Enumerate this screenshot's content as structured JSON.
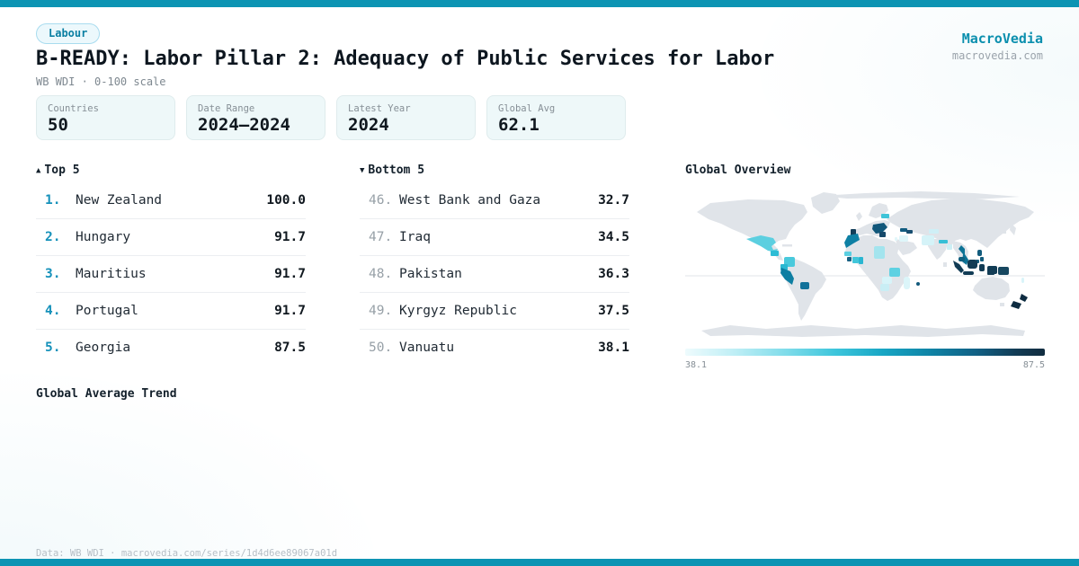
{
  "meta": {
    "brand": "MacroVedia",
    "brand_url": "macrovedia.com"
  },
  "header": {
    "category_badge": "Labour",
    "title": "B-READY: Labor Pillar 2: Adequacy of Public Services for Labor",
    "subtitle": "WB WDI · 0-100 scale"
  },
  "stats": [
    {
      "label": "Countries",
      "value": "50"
    },
    {
      "label": "Date Range",
      "value": "2024—2024"
    },
    {
      "label": "Latest Year",
      "value": "2024"
    },
    {
      "label": "Global Avg",
      "value": "62.1"
    }
  ],
  "top5": {
    "icon": "▲",
    "title": "Top 5",
    "rows": [
      {
        "rank": "1.",
        "country": "New Zealand",
        "value": "100.0"
      },
      {
        "rank": "2.",
        "country": "Hungary",
        "value": "91.7"
      },
      {
        "rank": "3.",
        "country": "Mauritius",
        "value": "91.7"
      },
      {
        "rank": "4.",
        "country": "Portugal",
        "value": "91.7"
      },
      {
        "rank": "5.",
        "country": "Georgia",
        "value": "87.5"
      }
    ]
  },
  "bottom5": {
    "icon": "▼",
    "title": "Bottom 5",
    "rows": [
      {
        "rank": "46.",
        "country": "West Bank and Gaza",
        "value": "32.7"
      },
      {
        "rank": "47.",
        "country": "Iraq",
        "value": "34.5"
      },
      {
        "rank": "48.",
        "country": "Pakistan",
        "value": "36.3"
      },
      {
        "rank": "49.",
        "country": "Kyrgyz Republic",
        "value": "37.5"
      },
      {
        "rank": "50.",
        "country": "Vanuatu",
        "value": "38.1"
      }
    ]
  },
  "map": {
    "title": "Global Overview",
    "legend_min": "38.1",
    "legend_max": "87.5",
    "land_color": "#e0e4e9",
    "regions": [
      {
        "id": "mexico",
        "color": "#5ccfe0",
        "pieces": [
          "M68,56 L84,52 L98,55 L101,60 L96,64 L98,68 L103,67 L101,71 L92,69 L84,64 L76,60 Z"
        ]
      },
      {
        "id": "guatemala",
        "color": "#2dbcd5",
        "pieces": [
          [
            95,
            69,
            9,
            6,
            1
          ]
        ]
      },
      {
        "id": "colombia",
        "color": "#49c9dc",
        "pieces": [
          [
            110,
            76,
            12,
            11,
            2
          ]
        ]
      },
      {
        "id": "ecuador",
        "color": "#2bb8d2",
        "pieces": [
          [
            106,
            84,
            8,
            7,
            1
          ]
        ]
      },
      {
        "id": "peru",
        "color": "#0d7ea2",
        "pieces": [
          "M107,88 L117,92 L121,100 L119,107 L111,101 L106,94 Z"
        ]
      },
      {
        "id": "paraguay",
        "color": "#10719a",
        "pieces": [
          [
            128,
            104,
            10,
            8,
            2
          ]
        ]
      },
      {
        "id": "portugal",
        "color": "#123e59",
        "pieces": [
          [
            184,
            45,
            6,
            11,
            1
          ]
        ]
      },
      {
        "id": "morocco",
        "color": "#0e80a4",
        "pieces": [
          "M181,52 L192,50 L194,57 L187,61 L179,66 L177,60 Z"
        ]
      },
      {
        "id": "senegal",
        "color": "#5bcfe1",
        "pieces": [
          [
            177,
            70,
            8,
            5,
            1
          ]
        ]
      },
      {
        "id": "sierra-leone",
        "color": "#186083",
        "pieces": [
          [
            180,
            76,
            5,
            5,
            1
          ]
        ]
      },
      {
        "id": "cote-divoire",
        "color": "#42c6da",
        "pieces": [
          [
            186,
            76,
            7,
            7,
            1
          ]
        ]
      },
      {
        "id": "ghana",
        "color": "#2ab6d1",
        "pieces": [
          [
            193,
            76,
            5,
            8,
            1
          ]
        ]
      },
      {
        "id": "chad",
        "color": "#a3e4ee",
        "pieces": [
          [
            210,
            64,
            12,
            14,
            2
          ]
        ]
      },
      {
        "id": "tanzania",
        "color": "#5ed1e2",
        "pieces": [
          [
            227,
            88,
            12,
            10,
            2
          ]
        ]
      },
      {
        "id": "zambia",
        "color": "#d7f4f9",
        "pieces": [
          [
            219,
            98,
            11,
            8,
            2
          ]
        ]
      },
      {
        "id": "botswana",
        "color": "#c9eef5",
        "pieces": [
          [
            217,
            106,
            10,
            8,
            2
          ]
        ]
      },
      {
        "id": "madagascar",
        "color": "#dbf5f9",
        "pieces": [
          [
            243,
            98,
            7,
            14,
            3
          ]
        ]
      },
      {
        "id": "estonia",
        "color": "#3fc4d8",
        "pieces": [
          [
            218,
            28,
            9,
            5,
            1
          ]
        ]
      },
      {
        "id": "balkans-hungary",
        "color": "#11577a",
        "pieces": [
          "M209,40 L221,38 L225,43 L219,49 L212,50 L208,45 Z"
        ]
      },
      {
        "id": "greece",
        "color": "#16496a",
        "pieces": [
          [
            216,
            48,
            7,
            6,
            1
          ]
        ]
      },
      {
        "id": "georgia",
        "color": "#115c80",
        "pieces": [
          [
            239,
            44,
            8,
            4,
            1
          ]
        ]
      },
      {
        "id": "azerbaijan",
        "color": "#174e70",
        "pieces": [
          [
            246,
            46,
            7,
            4,
            1
          ]
        ]
      },
      {
        "id": "west-bank",
        "color": "#e2f7fa",
        "pieces": [
          [
            233,
            54,
            3,
            4,
            1
          ]
        ]
      },
      {
        "id": "iraq",
        "color": "#def6fa",
        "pieces": [
          [
            238,
            52,
            10,
            7,
            2
          ]
        ]
      },
      {
        "id": "pakistan",
        "color": "#d5f3f8",
        "pieces": [
          [
            263,
            52,
            14,
            11,
            2
          ]
        ]
      },
      {
        "id": "kyrgyz",
        "color": "#cfeff6",
        "pieces": [
          [
            271,
            45,
            11,
            5,
            1
          ]
        ]
      },
      {
        "id": "nepal",
        "color": "#37bfd6",
        "pieces": [
          [
            282,
            57,
            10,
            4,
            1
          ]
        ]
      },
      {
        "id": "bangladesh",
        "color": "#cdeff5",
        "pieces": [
          [
            291,
            62,
            6,
            6,
            1
          ]
        ]
      },
      {
        "id": "vietnam",
        "color": "#0d7396",
        "pieces": [
          "M307,63 L311,67 L311,73 L315,79 L313,85 L308,81 L309,73 L304,67 Z"
        ]
      },
      {
        "id": "cambodia",
        "color": "#11607f",
        "pieces": [
          [
            304,
            76,
            7,
            5,
            2
          ]
        ]
      },
      {
        "id": "philippines",
        "color": "#135c7d",
        "pieces": [
          [
            325,
            68,
            5,
            7,
            2
          ],
          [
            328,
            76,
            4,
            5,
            1
          ],
          [
            323,
            79,
            4,
            4,
            1
          ]
        ]
      },
      {
        "id": "indonesia",
        "color": "#123c55",
        "pieces": [
          "M298,80 L305,84 L310,91 L307,94 L300,87 Z",
          [
            309,
            92,
            12,
            4,
            2
          ],
          [
            314,
            79,
            11,
            10,
            3
          ],
          [
            327,
            84,
            6,
            8,
            2
          ],
          [
            336,
            93,
            8,
            3,
            1
          ],
          [
            336,
            86,
            11,
            9,
            2
          ]
        ]
      },
      {
        "id": "papua-new-guinea",
        "color": "#174760",
        "pieces": [
          [
            348,
            87,
            12,
            9,
            2
          ]
        ]
      },
      {
        "id": "mauritius",
        "color": "#135a7c",
        "pieces": [
          [
            257,
            104,
            4,
            4,
            2
          ]
        ]
      },
      {
        "id": "vanuatu",
        "color": "#d9f4f9",
        "pieces": [
          [
            374,
            99,
            3,
            6,
            2
          ]
        ]
      },
      {
        "id": "new-zealand",
        "color": "#0e2c41",
        "pieces": [
          "M374,117 L381,121 L378,126 L372,123 Z",
          "M365,125 L374,128 L371,134 L362,131 Z"
        ]
      }
    ]
  },
  "trend": {
    "title": "Global Average Trend"
  },
  "footer": {
    "text": "Data: WB WDI · macrovedia.com/series/1d4d6ee89067a01d"
  },
  "colors": {
    "accent_bar": "#0d94b3",
    "brand": "#0b8fae",
    "badge_text": "#0a7fa2",
    "rank_top": "#1591ba",
    "rank_bottom": "#97a0a7",
    "card_bg": "#eef8f9",
    "land": "#e0e4e9"
  },
  "chart_data": [
    {
      "type": "table",
      "title": "Top 5",
      "columns": [
        "rank",
        "country",
        "value"
      ],
      "rows": [
        [
          1,
          "New Zealand",
          100.0
        ],
        [
          2,
          "Hungary",
          91.7
        ],
        [
          3,
          "Mauritius",
          91.7
        ],
        [
          4,
          "Portugal",
          91.7
        ],
        [
          5,
          "Georgia",
          87.5
        ]
      ]
    },
    {
      "type": "table",
      "title": "Bottom 5",
      "columns": [
        "rank",
        "country",
        "value"
      ],
      "rows": [
        [
          46,
          "West Bank and Gaza",
          32.7
        ],
        [
          47,
          "Iraq",
          34.5
        ],
        [
          48,
          "Pakistan",
          36.3
        ],
        [
          49,
          "Kyrgyz Republic",
          37.5
        ],
        [
          50,
          "Vanuatu",
          38.1
        ]
      ]
    },
    {
      "type": "heatmap",
      "title": "Global Overview",
      "subtype": "world-choropleth",
      "colorbar_range": [
        38.1,
        87.5
      ],
      "known_values": {
        "New Zealand": 100.0,
        "Hungary": 91.7,
        "Mauritius": 91.7,
        "Portugal": 91.7,
        "Georgia": 87.5,
        "West Bank and Gaza": 32.7,
        "Iraq": 34.5,
        "Pakistan": 36.3,
        "Kyrgyz Republic": 37.5,
        "Vanuatu": 38.1,
        "global_average": 62.1,
        "countries": 50,
        "latest_year": 2024
      },
      "legend_position": "bottom"
    }
  ]
}
